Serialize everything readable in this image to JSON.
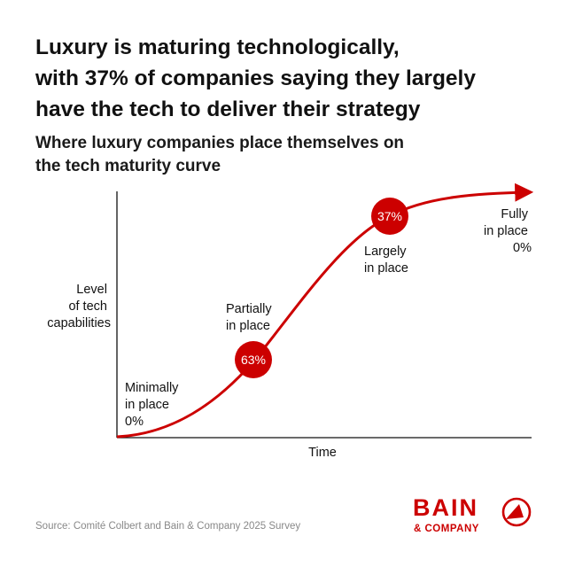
{
  "header": {
    "title_lines": [
      "Luxury is maturing technologically,",
      "with 37% of companies saying they largely",
      "have the tech to deliver their strategy"
    ],
    "subtitle_lines": [
      "Where luxury companies place themselves on",
      "the tech maturity curve"
    ]
  },
  "chart_data": {
    "type": "line",
    "xlabel": "Time",
    "ylabel_lines": [
      "Level",
      "of tech",
      "capabilities"
    ],
    "points": [
      {
        "stage": "Minimally in place",
        "label_lines": [
          "Minimally",
          "in place",
          "0%"
        ],
        "value": 0,
        "marker": false
      },
      {
        "stage": "Partially in place",
        "label_lines": [
          "Partially",
          "in place"
        ],
        "value": 63,
        "value_label": "63%",
        "marker": true
      },
      {
        "stage": "Largely in place",
        "label_lines": [
          "Largely",
          "in place"
        ],
        "value": 37,
        "value_label": "37%",
        "marker": true
      },
      {
        "stage": "Fully in place",
        "label_lines": [
          "Fully",
          "in place",
          "0%"
        ],
        "value": 0,
        "marker": false
      }
    ],
    "colors": {
      "curve": "#cc0000",
      "axis": "#111111"
    }
  },
  "footer": {
    "source": "Source: Comité Colbert and Bain & Company 2025 Survey",
    "logo_text": "BAIN",
    "logo_subtext": "& COMPANY",
    "brand_color": "#cc0000"
  }
}
